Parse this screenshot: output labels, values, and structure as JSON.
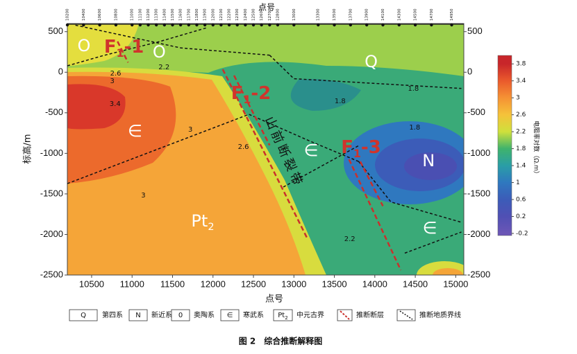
{
  "chart_data": {
    "type": "contour",
    "x_label_top": "点号",
    "x_label": "点号",
    "y_label": "标高/m",
    "caption": "图 2　综合推断解释图",
    "xlim": [
      10200,
      15100
    ],
    "ylim": [
      -2500,
      600
    ],
    "xticks": [
      10500,
      11000,
      11500,
      12000,
      12500,
      13000,
      13500,
      14000,
      14500,
      15000
    ],
    "yticks": [
      500,
      0,
      -500,
      -1000,
      -1500,
      -2000,
      -2500
    ],
    "stations": [
      10200,
      10400,
      10600,
      10800,
      11000,
      11100,
      11200,
      11300,
      11400,
      11500,
      11600,
      11700,
      11800,
      11900,
      12000,
      12100,
      12200,
      12300,
      12400,
      12500,
      12600,
      12700,
      12800,
      13000,
      13300,
      13500,
      13700,
      13900,
      14100,
      14300,
      14500,
      14700,
      14950
    ],
    "colorbar": {
      "label": "电阻率对数（Ω.m）",
      "lim": [
        -0.25,
        4.0
      ],
      "ticks": [
        -0.2,
        0.2,
        0.6,
        1,
        1.4,
        1.8,
        2.2,
        2.6,
        3,
        3.4,
        3.8
      ],
      "colors": [
        "#6b56b6",
        "#5050b4",
        "#3c5cb8",
        "#2f78bf",
        "#2a9ea6",
        "#3fb36c",
        "#cfe03c",
        "#f5c23a",
        "#f59234",
        "#ea5a2c",
        "#c8262a"
      ]
    },
    "contour_labels": [
      {
        "x": 10797,
        "y": -15,
        "value": 2.6
      },
      {
        "x": 10755,
        "y": -109,
        "value": 3
      },
      {
        "x": 10790,
        "y": -391,
        "value": 3.4
      },
      {
        "x": 11395,
        "y": 62,
        "value": 2.2
      },
      {
        "x": 14476,
        "y": -203,
        "value": 1.8
      },
      {
        "x": 13571,
        "y": -356,
        "value": 1.8
      },
      {
        "x": 14493,
        "y": -681,
        "value": 1.8
      },
      {
        "x": 11720,
        "y": -707,
        "value": 3
      },
      {
        "x": 12376,
        "y": -920,
        "value": 2.6
      },
      {
        "x": 11139,
        "y": -1518,
        "value": 3
      },
      {
        "x": 13690,
        "y": -2056,
        "value": 2.2
      }
    ],
    "units": [
      {
        "x": 10405,
        "y": 318,
        "text": "O"
      },
      {
        "x": 11335,
        "y": 241,
        "text": "O"
      },
      {
        "x": 13955,
        "y": 122,
        "text": "Q"
      },
      {
        "x": 11036,
        "y": -732,
        "text": "∈"
      },
      {
        "x": 13213,
        "y": -971,
        "text": "∈"
      },
      {
        "x": 14664,
        "y": -1099,
        "text": "N"
      },
      {
        "x": 14680,
        "y": -1928,
        "text": "∈"
      },
      {
        "x": 11873,
        "y": -1842,
        "text": "Pt",
        "sub": "2"
      }
    ],
    "fault_labels": [
      {
        "x": 10900,
        "y": 310,
        "text": "F",
        "sub": "1",
        "rest": "-1"
      },
      {
        "x": 12470,
        "y": -262,
        "text": "F",
        "sub": "1",
        "rest": "-2"
      },
      {
        "x": 13830,
        "y": -929,
        "text": "F",
        "sub": "1",
        "rest": "-3"
      }
    ],
    "fault_zone_label": {
      "x": 12871,
      "y": -988,
      "text": "山前断裂带"
    },
    "faults": [
      [
        [
          10820,
          380
        ],
        [
          10950,
          120
        ]
      ],
      [
        [
          12120,
          36
        ],
        [
          13170,
          -2058
        ]
      ],
      [
        [
          12260,
          -40
        ],
        [
          12700,
          -900
        ]
      ],
      [
        [
          13681,
          -1074
        ],
        [
          14321,
          -2440
        ]
      ],
      [
        [
          13820,
          -1100
        ],
        [
          14100,
          -1650
        ]
      ]
    ],
    "boundaries": [
      [
        [
          10200,
          79
        ],
        [
          10650,
          207
        ],
        [
          11340,
          378
        ],
        [
          11930,
          550
        ]
      ],
      [
        [
          10300,
          580
        ],
        [
          11600,
          300
        ],
        [
          12700,
          210
        ]
      ],
      [
        [
          12700,
          210
        ],
        [
          13000,
          -80
        ],
        [
          15070,
          -200
        ]
      ],
      [
        [
          10200,
          -1373
        ],
        [
          12445,
          -519
        ]
      ],
      [
        [
          12445,
          -519
        ],
        [
          13200,
          -850
        ],
        [
          13800,
          -1100
        ]
      ],
      [
        [
          12870,
          -1415
        ],
        [
          13810,
          -900
        ]
      ],
      [
        [
          13800,
          -1100
        ],
        [
          14200,
          -1600
        ],
        [
          15070,
          -1850
        ]
      ],
      [
        [
          14370,
          -2230
        ],
        [
          15070,
          -1970
        ]
      ]
    ],
    "legend": [
      {
        "symbol": "Q",
        "label": "第四系"
      },
      {
        "symbol": "N",
        "label": "新近系"
      },
      {
        "symbol": "0",
        "label": "奥陶系"
      },
      {
        "symbol": "∈",
        "label": "寒武系"
      },
      {
        "symbol": "Pt",
        "sub": "2",
        "label": "中元古界"
      },
      {
        "label": "推断断层"
      },
      {
        "label": "推断地质界线"
      }
    ]
  }
}
